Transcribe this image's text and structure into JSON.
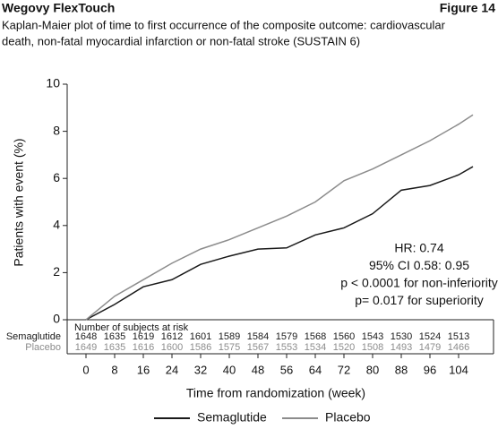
{
  "header": {
    "title": "Wegovy FlexTouch",
    "figure": "Figure 14"
  },
  "chart_data": {
    "type": "line",
    "title": "Kaplan-Maier plot of time to first occurrence of the composite outcome: cardiovascular",
    "subtitle": "death, non-fatal myocardial infarction or non-fatal stroke (SUSTAIN 6)",
    "x_label": "Time from randomization (week)",
    "y_label": "Patients with event (%)",
    "x": [
      0,
      8,
      16,
      24,
      32,
      40,
      48,
      56,
      64,
      72,
      80,
      88,
      96,
      104,
      108
    ],
    "series": [
      {
        "name": "Semaglutide",
        "color": "#1a1a1a",
        "values": [
          0,
          0.65,
          1.4,
          1.7,
          2.35,
          2.7,
          3.0,
          3.05,
          3.6,
          3.9,
          4.5,
          5.5,
          5.7,
          6.15,
          6.5
        ]
      },
      {
        "name": "Placebo",
        "color": "#8c8c8c",
        "values": [
          0,
          1.0,
          1.7,
          2.4,
          3.0,
          3.4,
          3.9,
          4.4,
          5.0,
          5.9,
          6.4,
          7.0,
          7.6,
          8.3,
          8.7
        ]
      }
    ],
    "xlim": [
      -5.25,
      113.75
    ],
    "ylim": [
      0,
      10
    ],
    "xticks": [
      0,
      8,
      16,
      24,
      32,
      40,
      48,
      56,
      64,
      72,
      80,
      88,
      96,
      104
    ],
    "yticks": [
      0,
      2,
      4,
      6,
      8,
      10
    ],
    "annotations": [
      "HR: 0.74",
      "95% CI 0.58: 0.95",
      "p < 0.0001 for non-inferiority",
      "p= 0.017 for superiority"
    ],
    "risk_table": {
      "title": "Number of subjects at risk",
      "rows": [
        {
          "name": "Semaglutide",
          "values": [
            1648,
            1635,
            1619,
            1612,
            1601,
            1589,
            1584,
            1579,
            1568,
            1560,
            1543,
            1530,
            1524,
            1513
          ]
        },
        {
          "name": "Placebo",
          "values": [
            1649,
            1635,
            1616,
            1600,
            1586,
            1575,
            1567,
            1553,
            1534,
            1520,
            1508,
            1493,
            1479,
            1466
          ]
        }
      ]
    }
  }
}
